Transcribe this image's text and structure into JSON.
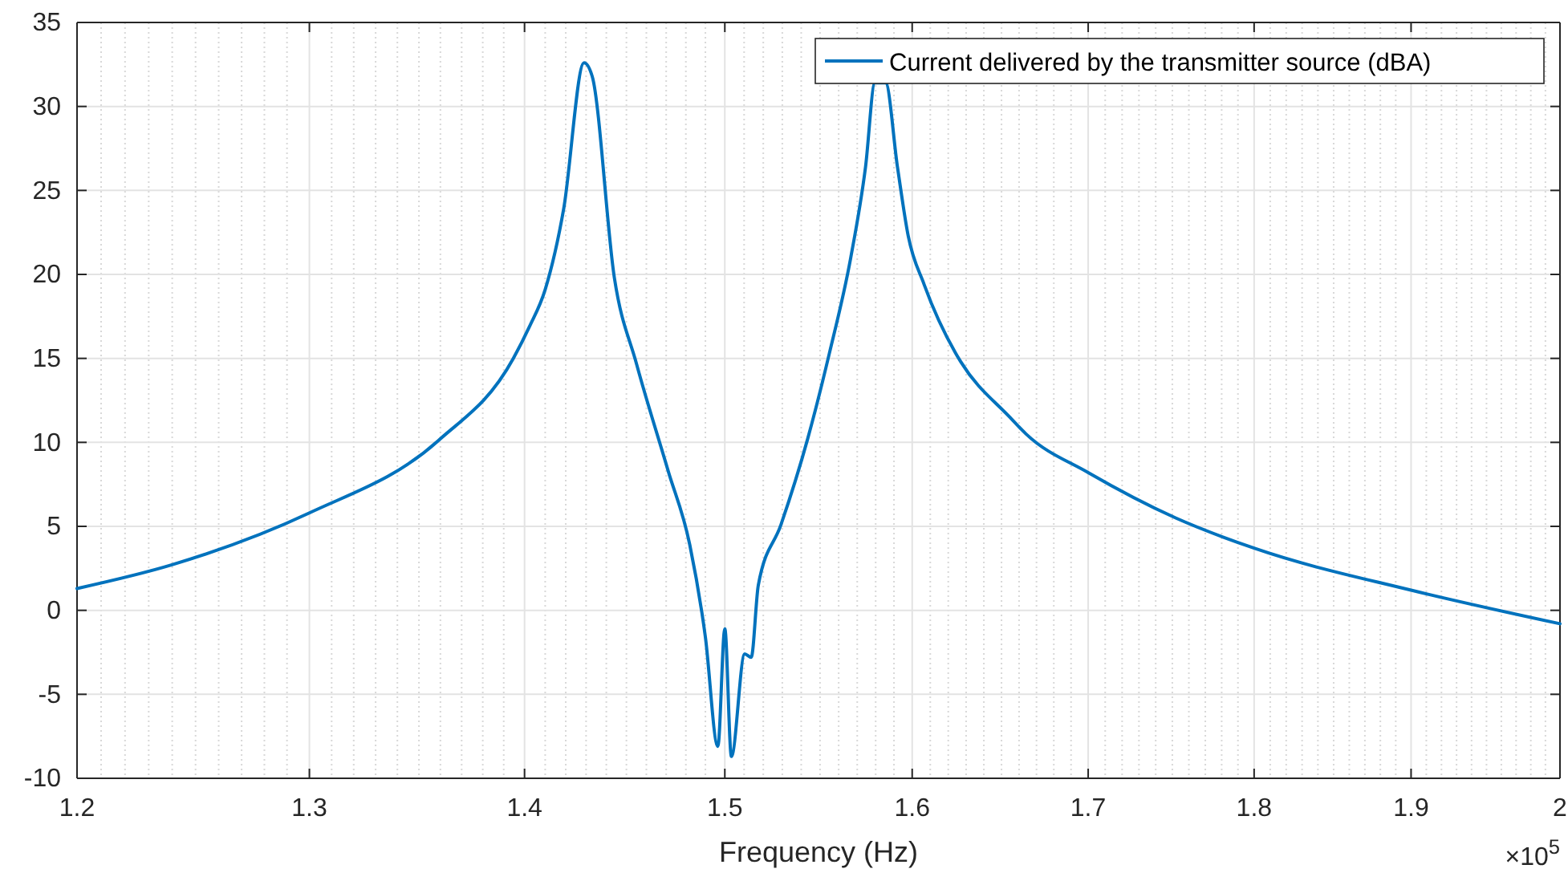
{
  "chart_data": {
    "type": "line",
    "xlabel": "Frequency (Hz)",
    "log": "x",
    "grid": true,
    "legend": "top right",
    "line_style": "solid",
    "marker": "none",
    "xlim": [
      1.2,
      2
    ],
    "xticks": [
      1.2,
      1.3,
      1.4,
      1.5,
      1.6,
      1.7,
      1.8,
      1.9,
      2
    ],
    "ylim": [
      -10,
      35
    ],
    "yticks": [
      -10,
      -5,
      0,
      5,
      10,
      15,
      20,
      25,
      30,
      35
    ],
    "annotations": [
      "×10$^{5}$"
    ],
    "x": [
      1.2,
      1.2396,
      1.3,
      1.359,
      1.3946,
      1.4024,
      1.41,
      1.419,
      1.429,
      1.433,
      1.444,
      1.455,
      1.471,
      1.482,
      1.49,
      1.4964,
      1.5,
      1.5034,
      1.5103,
      1.5137,
      1.5174,
      1.5293,
      1.5434,
      1.555,
      1.5665,
      1.5745,
      1.5796,
      1.5854,
      1.5919,
      1.5978,
      1.6066,
      1.6242,
      1.627,
      1.6547,
      1.664,
      1.7,
      1.752,
      1.8,
      1.9,
      2
    ],
    "series": [
      {
        "name": "Current delivered by the transmitter source (dBA)",
        "color": "#0072bd",
        "values": [
          1.3,
          2.7,
          5.8,
          10.1,
          15.0,
          16.9,
          19.1,
          23.9,
          32.6,
          31.8,
          19.8,
          14.7,
          8.3,
          3.9,
          -1.6,
          -8.1,
          -1.1,
          -8.7,
          -2.6,
          -2.8,
          1.5,
          5.1,
          10.2,
          15.3,
          21.0,
          26.4,
          31.4,
          31.4,
          26.4,
          22.3,
          19.4,
          15.3,
          14.8,
          11.5,
          10.5,
          8.2,
          5.5,
          3.7,
          1.2,
          -0.8
        ]
      }
    ]
  }
}
